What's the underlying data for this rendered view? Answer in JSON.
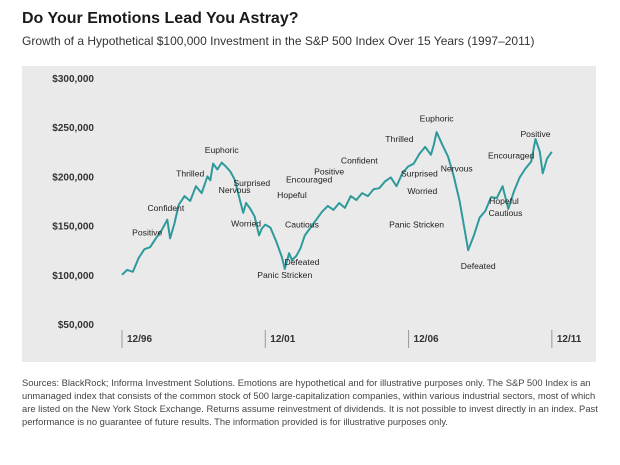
{
  "header": {
    "title": "Do Your Emotions Lead You Astray?",
    "subtitle": "Growth of a Hypothetical $100,000 Investment in the S&P 500 Index Over 15 Years (1997–2011)"
  },
  "footer": {
    "source": "Sources: BlackRock; Informa Investment Solutions. Emotions are hypothetical and for illustrative purposes only. The S&P 500 Index is an unmanaged index that consists of the common stock of 500 large-capitalization companies, within various industrial sectors, most of which are listed on the New York Stock Exchange. Returns assume reinvestment of dividends. It is not possible to invest directly in an index. Past performance is no guarantee of future results. The information provided is for illustrative purposes only."
  },
  "colors": {
    "line": "#2f9a9c",
    "marker": "#2f9a9c",
    "panel": "#eaeaea",
    "tick": "#9a9a9a"
  },
  "chart_data": {
    "type": "line",
    "title": "Do Your Emotions Lead You Astray?",
    "subtitle": "Growth of a Hypothetical $100,000 Investment in the S&P 500 Index Over 15 Years (1997–2011)",
    "xlabel": "",
    "ylabel": "",
    "xlim": [
      1996.92,
      2012.1
    ],
    "ylim": [
      50000,
      300000
    ],
    "yticks": [
      50000,
      100000,
      150000,
      200000,
      250000,
      300000
    ],
    "ytick_labels": [
      "$50,000",
      "$100,000",
      "$150,000",
      "$200,000",
      "$250,000",
      "$300,000"
    ],
    "xticks": [
      1996.92,
      2001.92,
      2006.92,
      2011.92
    ],
    "xtick_labels": [
      "12/96",
      "12/01",
      "12/06",
      "12/11"
    ],
    "grid": false,
    "legend": "none",
    "series": [
      {
        "x": [
          1996.92,
          1997.1,
          1997.3,
          1997.5,
          1997.7,
          1997.9,
          1998.1,
          1998.3,
          1998.5,
          1998.6,
          1998.75,
          1998.9,
          1999.1,
          1999.3,
          1999.5,
          1999.7,
          1999.9,
          2000.0,
          2000.1,
          2000.25,
          2000.4,
          2000.55,
          2000.7,
          2000.85,
          2001.0,
          2001.15,
          2001.25,
          2001.4,
          2001.55,
          2001.7,
          2001.8,
          2001.92,
          2002.1,
          2002.3,
          2002.5,
          2002.6,
          2002.75,
          2002.85,
          2003.0,
          2003.15,
          2003.3,
          2003.5,
          2003.7,
          2003.9,
          2004.1,
          2004.3,
          2004.5,
          2004.7,
          2004.9,
          2005.1,
          2005.3,
          2005.5,
          2005.7,
          2005.9,
          2006.1,
          2006.3,
          2006.5,
          2006.7,
          2006.9,
          2007.1,
          2007.3,
          2007.5,
          2007.7,
          2007.8,
          2007.9,
          2008.1,
          2008.3,
          2008.5,
          2008.7,
          2008.85,
          2009.0,
          2009.2,
          2009.4,
          2009.6,
          2009.8,
          2010.0,
          2010.2,
          2010.4,
          2010.6,
          2010.8,
          2011.0,
          2011.2,
          2011.35,
          2011.5,
          2011.6,
          2011.75,
          2011.92
        ],
        "y": [
          100000,
          105000,
          103000,
          117000,
          126000,
          128000,
          137000,
          145000,
          156000,
          137000,
          152000,
          171000,
          180000,
          175000,
          190000,
          183000,
          200000,
          196000,
          213000,
          207000,
          214000,
          210000,
          205000,
          197000,
          180000,
          163000,
          173000,
          167000,
          159000,
          140000,
          147000,
          151000,
          148000,
          134000,
          118000,
          106000,
          122000,
          115000,
          119000,
          127000,
          140000,
          148000,
          156000,
          164000,
          170000,
          166000,
          173000,
          168000,
          180000,
          176000,
          183000,
          180000,
          187000,
          188000,
          195000,
          199000,
          190000,
          203000,
          210000,
          213000,
          223000,
          230000,
          222000,
          232000,
          245000,
          232000,
          220000,
          200000,
          175000,
          150000,
          125000,
          140000,
          158000,
          165000,
          179000,
          178000,
          190000,
          167000,
          185000,
          199000,
          208000,
          215000,
          238000,
          225000,
          203000,
          218000,
          225000
        ]
      }
    ],
    "annotations": [
      {
        "text": "Positive",
        "x": 1997.8,
        "y": 140000
      },
      {
        "text": "Confident",
        "x": 1998.45,
        "y": 165000
      },
      {
        "text": "Thrilled",
        "x": 1999.3,
        "y": 200000
      },
      {
        "text": "Euphoric",
        "x": 2000.4,
        "y": 224000
      },
      {
        "text": "Nervous",
        "x": 2000.85,
        "y": 183000
      },
      {
        "text": "Surprised",
        "x": 2001.45,
        "y": 190000
      },
      {
        "text": "Worried",
        "x": 2001.25,
        "y": 149000
      },
      {
        "text": "Panic Stricken",
        "x": 2002.6,
        "y": 97000
      },
      {
        "text": "Defeated",
        "x": 2003.2,
        "y": 110000
      },
      {
        "text": "Cautious",
        "x": 2003.2,
        "y": 148000
      },
      {
        "text": "Hopeful",
        "x": 2002.85,
        "y": 178000
      },
      {
        "text": "Encouraged",
        "x": 2003.45,
        "y": 194000
      },
      {
        "text": "Positive",
        "x": 2004.15,
        "y": 202000
      },
      {
        "text": "Confident",
        "x": 2005.2,
        "y": 213000
      },
      {
        "text": "Thrilled",
        "x": 2006.6,
        "y": 235000
      },
      {
        "text": "Euphoric",
        "x": 2007.9,
        "y": 256000
      },
      {
        "text": "Surprised",
        "x": 2007.3,
        "y": 200000
      },
      {
        "text": "Nervous",
        "x": 2008.6,
        "y": 205000
      },
      {
        "text": "Worried",
        "x": 2007.4,
        "y": 182000
      },
      {
        "text": "Panic Stricken",
        "x": 2007.2,
        "y": 148000
      },
      {
        "text": "Defeated",
        "x": 2009.35,
        "y": 106000
      },
      {
        "text": "Cautious",
        "x": 2010.3,
        "y": 160000
      },
      {
        "text": "Hopeful",
        "x": 2010.25,
        "y": 172000
      },
      {
        "text": "Encouraged",
        "x": 2010.5,
        "y": 218000
      },
      {
        "text": "Positive",
        "x": 2011.35,
        "y": 240000
      }
    ]
  }
}
